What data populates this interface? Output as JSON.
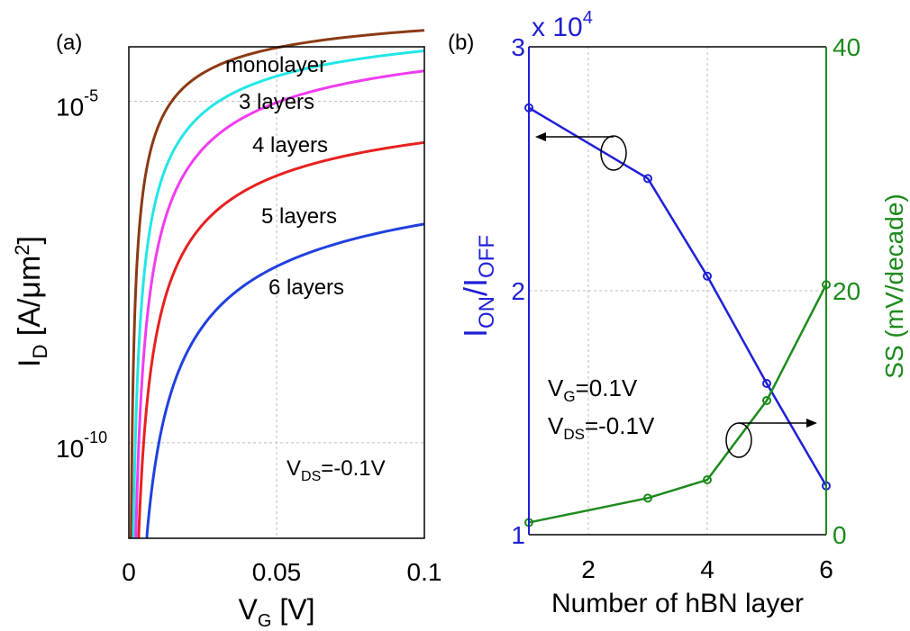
{
  "panel_a": {
    "label": "(a)",
    "annotation": {
      "main": "V",
      "sub": "DS",
      "rest": "=-0.1V"
    }
  },
  "panel_b": {
    "label": "(b)",
    "exponent": {
      "base": "x 10",
      "power": "4"
    },
    "annotations": [
      {
        "main": "V",
        "sub": "G",
        "rest": "=0.1V"
      },
      {
        "main": "V",
        "sub": "DS",
        "rest": "=-0.1V"
      }
    ]
  },
  "chart_data": [
    {
      "type": "line",
      "panel": "(a)",
      "xlabel": {
        "main": "V",
        "sub": "G",
        "rest": " [V]"
      },
      "ylabel": {
        "main": "I",
        "sub": "D",
        "rest": " [A/μm",
        "sup": "2",
        "close": "]"
      },
      "xlim": [
        0,
        0.1
      ],
      "ylim_log10": [
        -11.4,
        -4.2
      ],
      "yscale": "log",
      "xticks": [
        "0",
        "0.05",
        "0.1"
      ],
      "yticks": [
        {
          "base": "10",
          "exp": "-5",
          "value": 1e-05
        },
        {
          "base": "10",
          "exp": "-10",
          "value": 1e-10
        }
      ],
      "grid": true,
      "series": [
        {
          "name": "monolayer",
          "color": "#8b3a14",
          "y_at_0.1": 0.00011
        },
        {
          "name": "3 layers",
          "color": "#22e6e6",
          "y_at_0.1": 5.5e-05
        },
        {
          "name": "4 layers",
          "color": "#f03cf0",
          "y_at_0.1": 2.8e-05
        },
        {
          "name": "5 layers",
          "color": "#e82020",
          "y_at_0.1": 2.5e-06
        },
        {
          "name": "6 layers",
          "color": "#2040e0",
          "y_at_0.1": 1.6e-07
        }
      ]
    },
    {
      "type": "line",
      "panel": "(b)",
      "xlabel": "Number of hBN layer",
      "xlim": [
        1,
        6
      ],
      "xticks": [
        "2",
        "4",
        "6"
      ],
      "grid": true,
      "left_axis": {
        "label": {
          "main": "I",
          "sub1": "ON",
          "mid": "/I",
          "sub2": "OFF"
        },
        "color": "#1f1fd6",
        "ylim": [
          1,
          3
        ],
        "ticks": [
          "1",
          "2",
          "3"
        ],
        "unit_multiplier": 10000
      },
      "right_axis": {
        "label": "SS (mV/decade)",
        "color": "#1d8a1d",
        "ylim": [
          0,
          40
        ],
        "ticks": [
          "0",
          "20",
          "40"
        ]
      },
      "series": [
        {
          "axis": "left",
          "color": "#1f1fd6",
          "x": [
            1,
            3,
            4,
            5,
            6
          ],
          "y": [
            2.75,
            2.46,
            2.06,
            1.62,
            1.2
          ]
        },
        {
          "axis": "right",
          "color": "#1d8a1d",
          "x": [
            1,
            3,
            4,
            5,
            6
          ],
          "y": [
            1.0,
            3.0,
            4.5,
            11.0,
            20.5
          ]
        }
      ]
    }
  ]
}
